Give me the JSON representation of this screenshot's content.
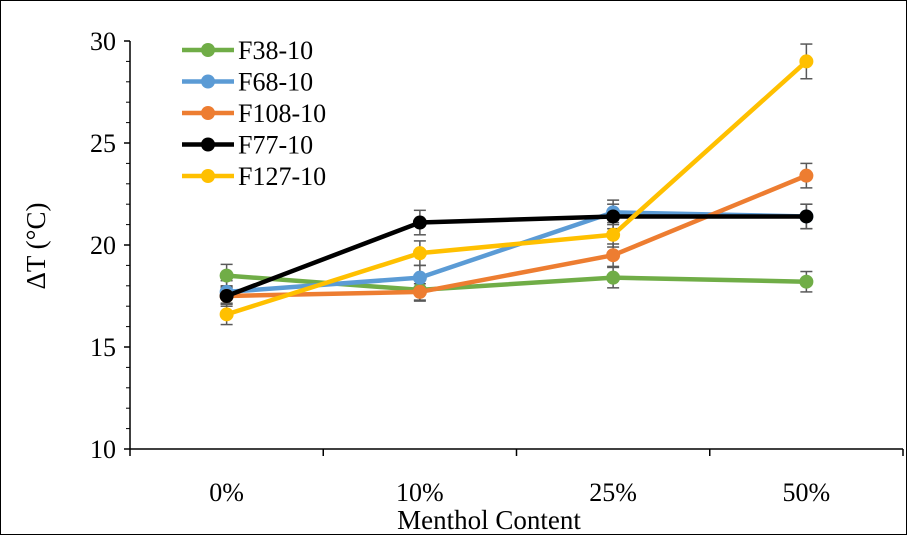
{
  "chart_data": {
    "type": "line",
    "title": "",
    "xlabel": "Menthol Content",
    "ylabel": "ΔT (°C)",
    "categories": [
      "0%",
      "10%",
      "25%",
      "50%"
    ],
    "ylim": [
      10,
      30
    ],
    "yticks": [
      10,
      15,
      20,
      25,
      30
    ],
    "grid": false,
    "legend_position": "top-left",
    "error_bars": true,
    "series": [
      {
        "name": "F38-10",
        "color": "#70AD47",
        "values": [
          18.5,
          17.8,
          18.4,
          18.2
        ],
        "errors": [
          0.55,
          0.55,
          0.5,
          0.5
        ]
      },
      {
        "name": "F68-10",
        "color": "#5B9BD5",
        "values": [
          17.7,
          18.4,
          21.6,
          21.4
        ],
        "errors": [
          0.55,
          0.6,
          0.6,
          0.6
        ]
      },
      {
        "name": "F108-10",
        "color": "#ED7D31",
        "values": [
          17.5,
          17.7,
          19.5,
          23.4
        ],
        "errors": [
          0.4,
          0.4,
          0.55,
          0.6
        ]
      },
      {
        "name": "F77-10",
        "color": "#000000",
        "values": [
          17.5,
          21.1,
          21.4,
          21.4
        ],
        "errors": [
          0.5,
          0.6,
          0.6,
          0.6
        ]
      },
      {
        "name": "F127-10",
        "color": "#FFC000",
        "values": [
          16.6,
          19.6,
          20.5,
          29.0
        ],
        "errors": [
          0.5,
          0.6,
          0.6,
          0.85
        ]
      }
    ]
  }
}
